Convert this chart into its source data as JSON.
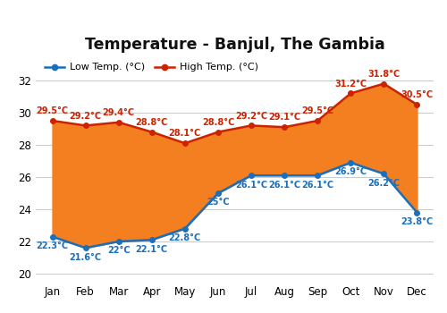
{
  "title": "Temperature - Banjul, The Gambia",
  "months": [
    "Jan",
    "Feb",
    "Mar",
    "Apr",
    "May",
    "Jun",
    "Jul",
    "Aug",
    "Sep",
    "Oct",
    "Nov",
    "Dec"
  ],
  "low_temps": [
    22.3,
    21.6,
    22.0,
    22.1,
    22.8,
    25.0,
    26.1,
    26.1,
    26.1,
    26.9,
    26.2,
    23.8
  ],
  "high_temps": [
    29.5,
    29.2,
    29.4,
    28.8,
    28.1,
    28.8,
    29.2,
    29.1,
    29.5,
    31.2,
    31.8,
    30.5
  ],
  "low_labels": [
    "22.3°C",
    "21.6°C",
    "22°C",
    "22.1°C",
    "22.8°C",
    "25°C",
    "26.1°C",
    "26.1°C",
    "26.1°C",
    "26.9°C",
    "26.2°C",
    "23.8°C"
  ],
  "high_labels": [
    "29.5°C",
    "29.2°C",
    "29.4°C",
    "28.8°C",
    "28.1°C",
    "28.8°C",
    "29.2°C",
    "29.1°C",
    "29.5°C",
    "31.2°C",
    "31.8°C",
    "30.5°C"
  ],
  "low_color": "#1a6fbd",
  "high_color": "#cc2200",
  "fill_color": "#f47f20",
  "ylim": [
    19.5,
    33.5
  ],
  "yticks": [
    20,
    22,
    24,
    26,
    28,
    30,
    32
  ],
  "legend_low": "Low Temp. (°C)",
  "legend_high": "High Temp. (°C)",
  "bg_color": "#ffffff",
  "grid_color": "#cccccc",
  "label_fontsize": 7.0,
  "title_fontsize": 12.5
}
